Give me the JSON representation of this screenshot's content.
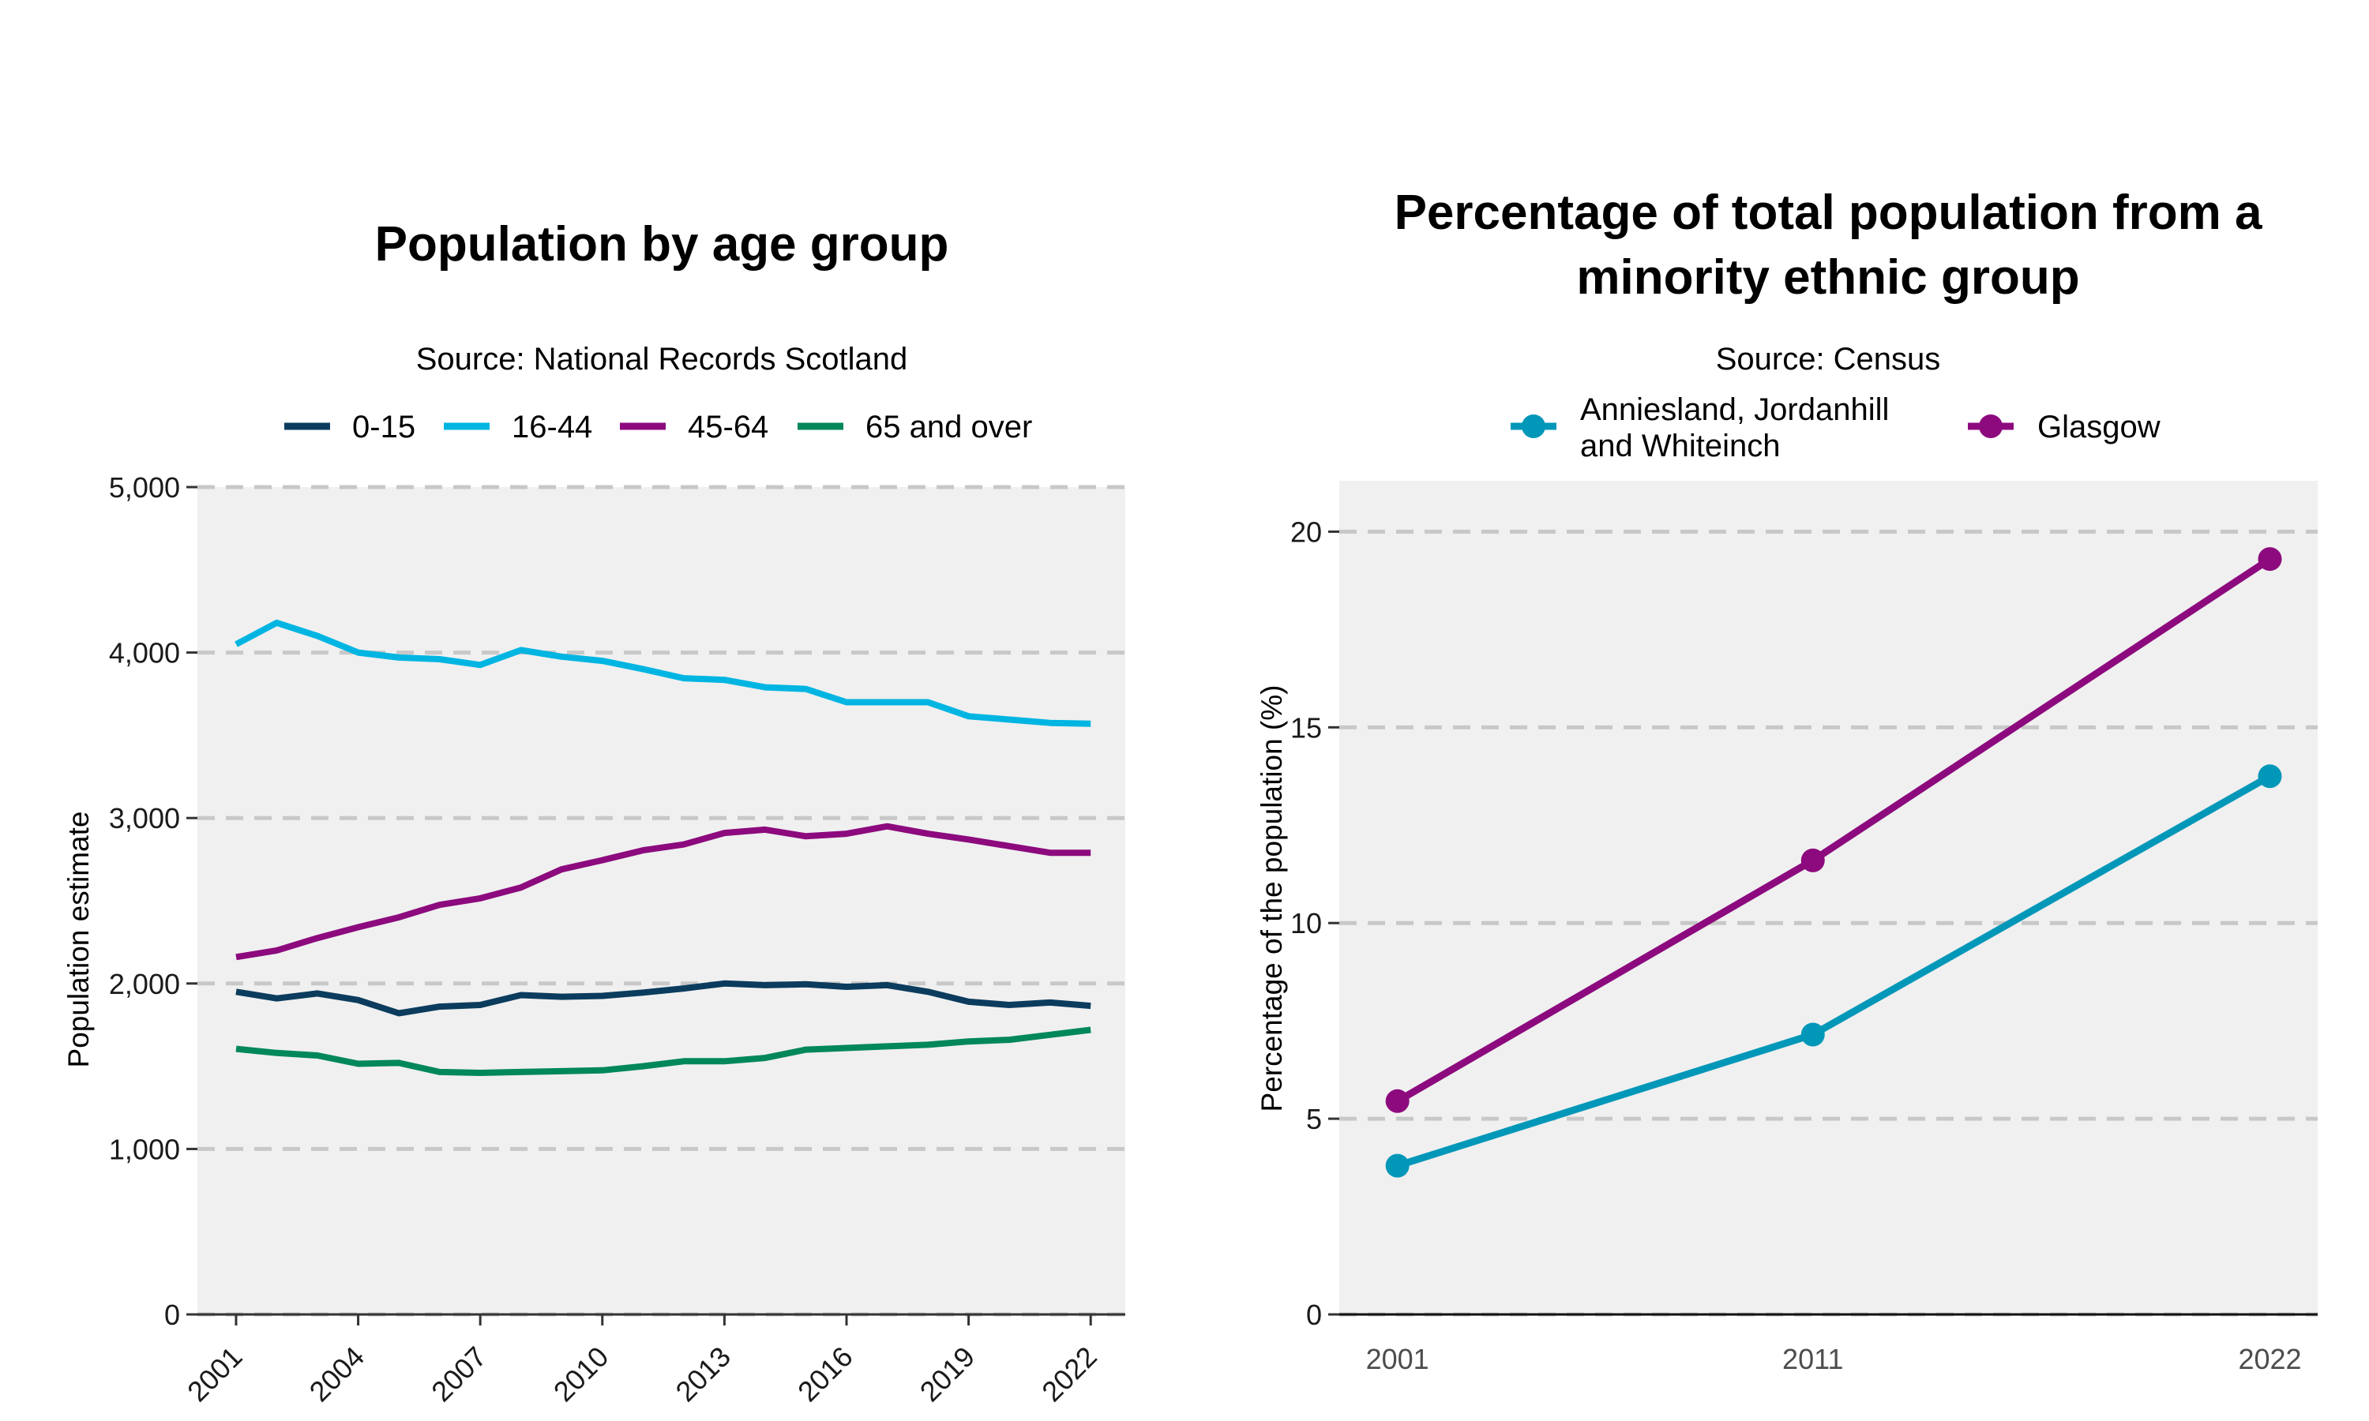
{
  "colors": {
    "c0_15": "#0b3c5d",
    "c16_44": "#00b5e2",
    "c45_64": "#8c0a7e",
    "c65": "#00875a",
    "annies": "#0097b8",
    "glasgow": "#8c0a7e",
    "panel": "#f0f0f0"
  },
  "chart_data": [
    {
      "type": "line",
      "title": "Population by age group",
      "subtitle": "Source: National Records Scotland",
      "xlabel": "",
      "ylabel": "Population estimate",
      "ylim": [
        0,
        5000
      ],
      "yticks": [
        0,
        1000,
        2000,
        3000,
        4000,
        5000
      ],
      "ytick_labels": [
        "0",
        "1,000",
        "2,000",
        "3,000",
        "4,000",
        "5,000"
      ],
      "xticks": [
        2001,
        2004,
        2007,
        2010,
        2013,
        2016,
        2019,
        2022
      ],
      "xtick_labels": [
        "2001",
        "2004",
        "2007",
        "2010",
        "2013",
        "2016",
        "2019",
        "2022"
      ],
      "legend_position": "top",
      "x": [
        2001,
        2002,
        2003,
        2004,
        2005,
        2006,
        2007,
        2008,
        2009,
        2010,
        2011,
        2012,
        2013,
        2014,
        2015,
        2016,
        2017,
        2018,
        2019,
        2020,
        2021,
        2022
      ],
      "series": [
        {
          "name": "0-15",
          "color_key": "c0_15",
          "values": [
            1950,
            1910,
            1940,
            1900,
            1820,
            1860,
            1870,
            1930,
            1920,
            1925,
            1945,
            1970,
            2000,
            1990,
            1995,
            1980,
            1990,
            1950,
            1890,
            1870,
            1885,
            1865
          ]
        },
        {
          "name": "16-44",
          "color_key": "c16_44",
          "values": [
            4050,
            4180,
            4100,
            4000,
            3970,
            3960,
            3925,
            4015,
            3975,
            3950,
            3900,
            3845,
            3835,
            3790,
            3780,
            3700,
            3700,
            3700,
            3615,
            3595,
            3575,
            3570
          ]
        },
        {
          "name": "45-64",
          "color_key": "c45_64",
          "values": [
            2160,
            2200,
            2275,
            2340,
            2400,
            2475,
            2515,
            2580,
            2690,
            2745,
            2805,
            2840,
            2910,
            2930,
            2890,
            2905,
            2950,
            2905,
            2870,
            2830,
            2790,
            2790
          ]
        },
        {
          "name": "65 and over",
          "color_key": "c65",
          "values": [
            1605,
            1580,
            1565,
            1515,
            1520,
            1465,
            1460,
            1465,
            1470,
            1475,
            1500,
            1530,
            1530,
            1550,
            1600,
            1610,
            1620,
            1630,
            1650,
            1660,
            1690,
            1720
          ]
        }
      ]
    },
    {
      "type": "line",
      "title_lines": [
        "Percentage of total population from a",
        "minority ethnic group"
      ],
      "subtitle": "Source: Census",
      "xlabel": "",
      "ylabel": "Percentage of the population (%)",
      "ylim": [
        0,
        21.3
      ],
      "yticks": [
        0,
        5,
        10,
        15,
        20
      ],
      "ytick_labels": [
        "0",
        "5",
        "10",
        "15",
        "20"
      ],
      "x": [
        "2001",
        "2011",
        "2022"
      ],
      "x_numeric": [
        2001,
        2011,
        2022
      ],
      "legend_position": "top",
      "series": [
        {
          "name_lines": [
            "Anniesland, Jordanhill",
            "and Whiteinch"
          ],
          "color_key": "annies",
          "values": [
            3.8,
            7.15,
            13.75
          ]
        },
        {
          "name_lines": [
            "Glasgow"
          ],
          "color_key": "glasgow",
          "values": [
            5.45,
            11.6,
            19.3
          ]
        }
      ]
    }
  ]
}
